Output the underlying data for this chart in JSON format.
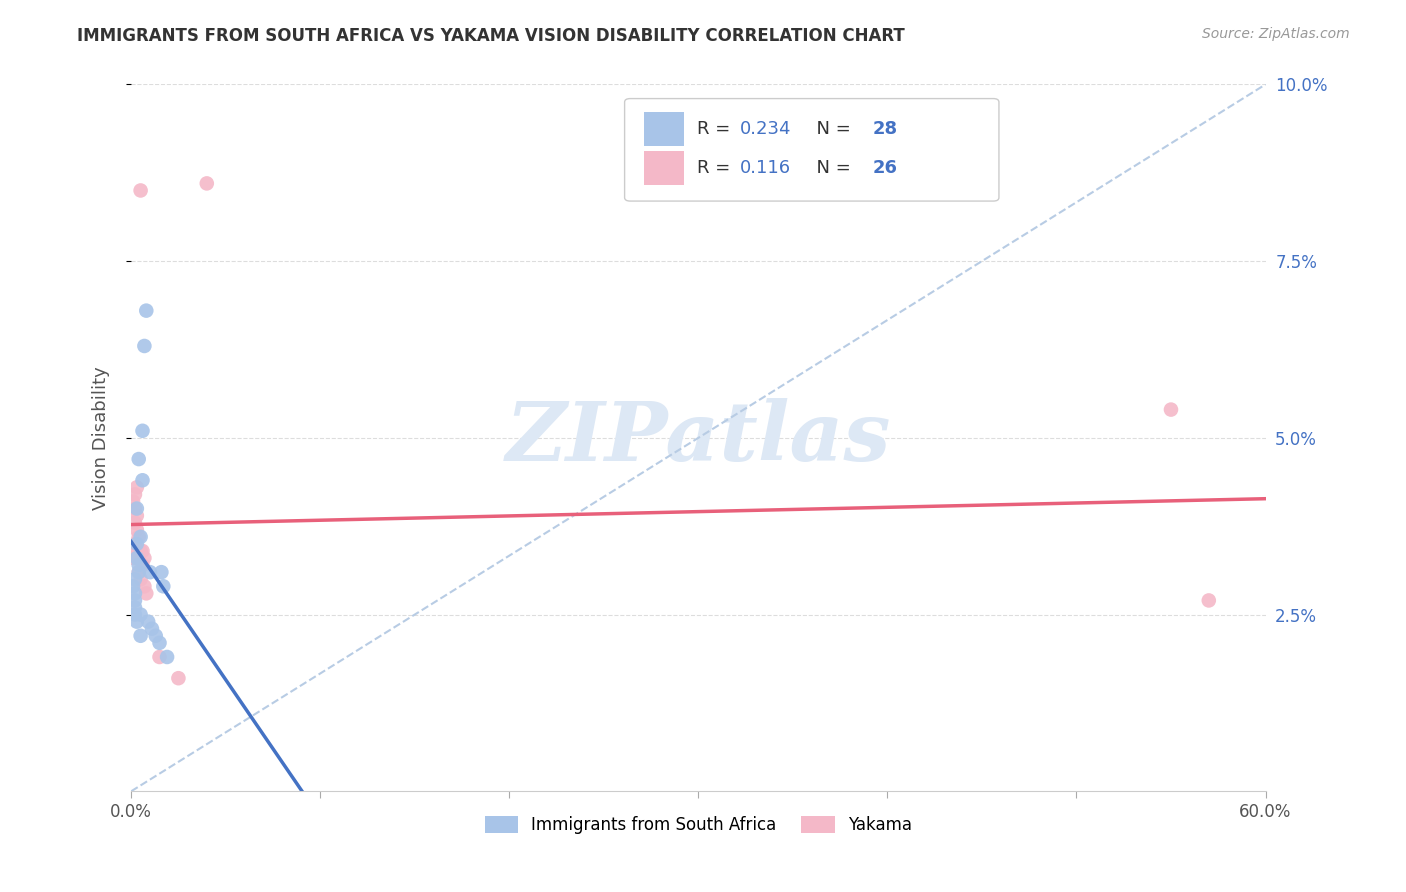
{
  "title": "IMMIGRANTS FROM SOUTH AFRICA VS YAKAMA VISION DISABILITY CORRELATION CHART",
  "source": "Source: ZipAtlas.com",
  "ylabel": "Vision Disability",
  "legend_blue_R": "0.234",
  "legend_blue_N": "28",
  "legend_pink_R": "0.116",
  "legend_pink_N": "26",
  "legend_label1": "Immigrants from South Africa",
  "legend_label2": "Yakama",
  "blue_color": "#a8c4e8",
  "pink_color": "#f4b8c8",
  "blue_line_color": "#4472c4",
  "pink_line_color": "#e8607a",
  "dashed_line_color": "#b8cce4",
  "xlim": [
    0.0,
    0.6
  ],
  "ylim": [
    0.0,
    0.1
  ],
  "blue_x": [
    0.001,
    0.002,
    0.002,
    0.002,
    0.002,
    0.002,
    0.003,
    0.003,
    0.003,
    0.003,
    0.004,
    0.004,
    0.004,
    0.005,
    0.005,
    0.005,
    0.006,
    0.006,
    0.007,
    0.008,
    0.009,
    0.01,
    0.011,
    0.013,
    0.015,
    0.016,
    0.017,
    0.019
  ],
  "blue_y": [
    0.029,
    0.028,
    0.027,
    0.026,
    0.025,
    0.03,
    0.035,
    0.033,
    0.04,
    0.024,
    0.032,
    0.047,
    0.031,
    0.025,
    0.036,
    0.022,
    0.044,
    0.051,
    0.063,
    0.068,
    0.024,
    0.031,
    0.023,
    0.022,
    0.021,
    0.031,
    0.029,
    0.019
  ],
  "pink_x": [
    0.001,
    0.001,
    0.002,
    0.002,
    0.002,
    0.002,
    0.003,
    0.003,
    0.003,
    0.003,
    0.004,
    0.004,
    0.004,
    0.005,
    0.005,
    0.005,
    0.006,
    0.006,
    0.007,
    0.007,
    0.008,
    0.015,
    0.025,
    0.04,
    0.55,
    0.57
  ],
  "pink_y": [
    0.033,
    0.041,
    0.035,
    0.038,
    0.04,
    0.042,
    0.034,
    0.037,
    0.039,
    0.043,
    0.031,
    0.033,
    0.036,
    0.03,
    0.034,
    0.085,
    0.032,
    0.034,
    0.029,
    0.033,
    0.028,
    0.019,
    0.016,
    0.086,
    0.054,
    0.027
  ],
  "background_color": "#ffffff",
  "watermark": "ZIPatlas",
  "watermark_color": "#dde8f5",
  "grid_color": "#dddddd"
}
